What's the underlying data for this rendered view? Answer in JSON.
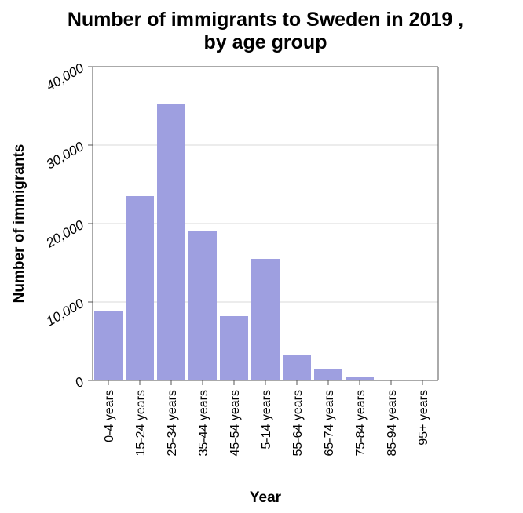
{
  "chart_data": {
    "type": "bar",
    "title_line1": "Number of immigrants to Sweden in 2019 ,",
    "title_line2": "by age group",
    "xlabel": "Year",
    "ylabel": "Number of immigrants",
    "categories": [
      "0-4 years",
      "15-24 years",
      "25-34 years",
      "35-44 years",
      "45-54 years",
      "5-14 years",
      "55-64 years",
      "65-74 years",
      "75-84 years",
      "85-94 years",
      "95+ years"
    ],
    "values": [
      8900,
      23500,
      35300,
      19100,
      8200,
      15500,
      3300,
      1400,
      500,
      100,
      20
    ],
    "ylim": [
      0,
      40000
    ],
    "yticks": [
      0,
      10000,
      20000,
      30000,
      40000
    ],
    "ytick_labels": [
      "0",
      "10,000",
      "20,000",
      "30,000",
      "40,000"
    ],
    "grid": true,
    "bar_color": "#9e9fe0"
  }
}
